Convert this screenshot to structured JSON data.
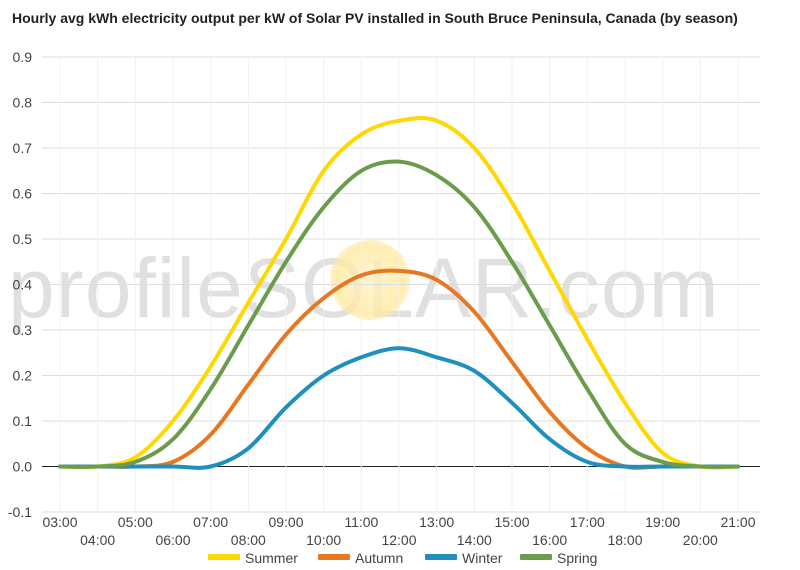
{
  "chart_data": {
    "type": "line",
    "title": "Hourly avg kWh electricity output per kW of Solar PV installed in South Bruce Peninsula, Canada (by season)",
    "watermark": "profileSOLAR.com",
    "xlabel": "",
    "ylabel": "",
    "ylim": [
      -0.1,
      0.9
    ],
    "yticks": [
      "-0.1",
      "0.0",
      "0.1",
      "0.2",
      "0.3",
      "0.4",
      "0.5",
      "0.6",
      "0.7",
      "0.8",
      "0.9"
    ],
    "x_tick_labels": [
      "03:00",
      "04:00",
      "05:00",
      "06:00",
      "07:00",
      "08:00",
      "09:00",
      "10:00",
      "11:00",
      "12:00",
      "13:00",
      "14:00",
      "15:00",
      "16:00",
      "17:00",
      "18:00",
      "19:00",
      "20:00",
      "21:00"
    ],
    "x_hours": [
      3,
      4,
      5,
      6,
      7,
      8,
      9,
      10,
      11,
      12,
      13,
      14,
      15,
      16,
      17,
      18,
      19,
      20,
      21
    ],
    "grid": true,
    "legend_position": "bottom",
    "series": [
      {
        "name": "Summer",
        "color": "#ffd800",
        "values": [
          0.0,
          0.0,
          0.02,
          0.1,
          0.22,
          0.36,
          0.5,
          0.65,
          0.73,
          0.76,
          0.76,
          0.7,
          0.58,
          0.43,
          0.28,
          0.14,
          0.03,
          0.0,
          0.0
        ]
      },
      {
        "name": "Autumn",
        "color": "#e87722",
        "values": [
          0.0,
          0.0,
          0.0,
          0.01,
          0.07,
          0.18,
          0.29,
          0.37,
          0.42,
          0.43,
          0.41,
          0.34,
          0.23,
          0.12,
          0.04,
          0.0,
          0.0,
          0.0,
          0.0
        ]
      },
      {
        "name": "Winter",
        "color": "#1f8fc0",
        "values": [
          0.0,
          0.0,
          0.0,
          0.0,
          0.0,
          0.04,
          0.13,
          0.2,
          0.24,
          0.26,
          0.24,
          0.21,
          0.14,
          0.06,
          0.01,
          0.0,
          0.0,
          0.0,
          0.0
        ]
      },
      {
        "name": "Spring",
        "color": "#6b9c4e",
        "values": [
          0.0,
          0.0,
          0.01,
          0.06,
          0.17,
          0.31,
          0.45,
          0.57,
          0.65,
          0.67,
          0.64,
          0.57,
          0.45,
          0.31,
          0.17,
          0.05,
          0.01,
          0.0,
          0.0
        ]
      }
    ]
  }
}
